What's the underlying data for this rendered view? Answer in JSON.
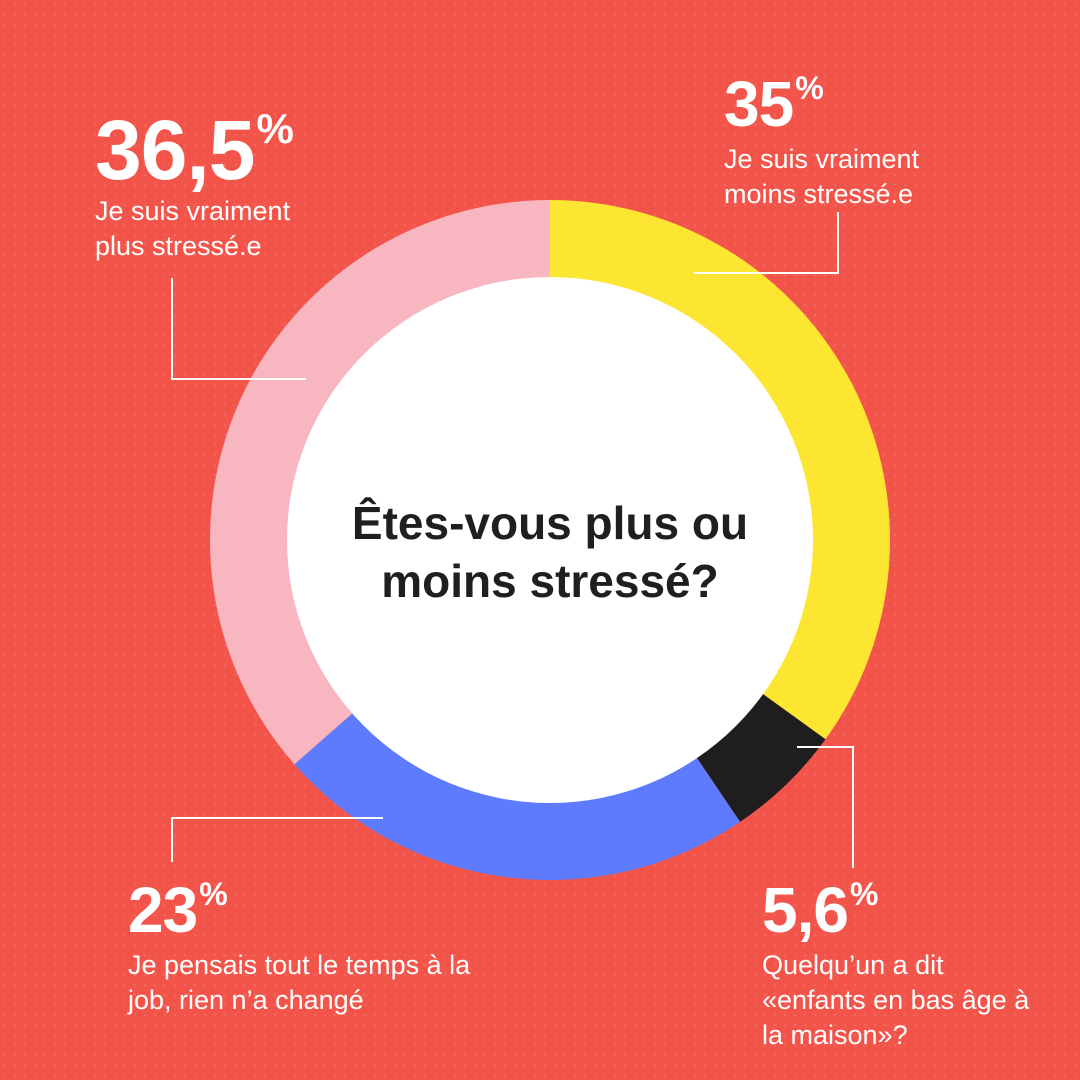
{
  "question": "Êtes-vous plus ou moins stressé?",
  "chart_data": {
    "type": "pie",
    "title": "Êtes-vous plus ou moins stressé?",
    "donut": true,
    "slices": [
      {
        "label": "Je suis vraiment moins stressé.e",
        "value": 35,
        "value_text": "35",
        "color": "#fde631"
      },
      {
        "label": "Quelqu’un a dit «enfants en bas âge à la maison»?",
        "value": 5.6,
        "value_text": "5,6",
        "color": "#1f1d1d"
      },
      {
        "label": "Je pensais tout le temps à la job, rien n’a changé",
        "value": 23,
        "value_text": "23",
        "color": "#5f7bfd"
      },
      {
        "label": "Je suis vraiment plus stressé.e",
        "value": 36.5,
        "value_text": "36,5",
        "color": "#f8b6c0"
      }
    ],
    "unit_symbol": "%",
    "legend": "callouts"
  },
  "colors": {
    "background": "#f2544a",
    "center": "#ffffff",
    "text": "#ffffff",
    "question_text": "#1f1f1f"
  }
}
